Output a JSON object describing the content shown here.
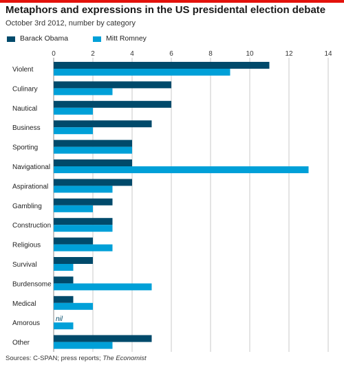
{
  "chart_data": {
    "type": "bar",
    "orientation": "horizontal",
    "title": "Metaphors and expressions in the US presidental election debate",
    "subtitle": "October 3rd 2012, number by category",
    "categories": [
      "Violent",
      "Culinary",
      "Nautical",
      "Business",
      "Sporting",
      "Navigational",
      "Aspirational",
      "Gambling",
      "Construction",
      "Religious",
      "Survival",
      "Burdensome",
      "Medical",
      "Amorous",
      "Other"
    ],
    "series": [
      {
        "name": "Barack Obama",
        "color": "#004a6b",
        "values": [
          11,
          6,
          6,
          5,
          4,
          4,
          4,
          3,
          3,
          2,
          2,
          1,
          1,
          0,
          5
        ]
      },
      {
        "name": "Mitt Romney",
        "color": "#00a0d8",
        "values": [
          9,
          3,
          2,
          2,
          4,
          13,
          3,
          2,
          3,
          3,
          1,
          5,
          2,
          1,
          3
        ]
      }
    ],
    "x_ticks": [
      0,
      2,
      4,
      6,
      8,
      10,
      12,
      14
    ],
    "xlim": [
      0,
      14
    ],
    "grid": true,
    "legend_position": "top-left",
    "annotations": [
      {
        "category": "Amorous",
        "series": "Barack Obama",
        "text": "nil"
      }
    ]
  },
  "source": {
    "prefix": "Sources: C-SPAN; press reports; ",
    "publication": "The Economist"
  }
}
